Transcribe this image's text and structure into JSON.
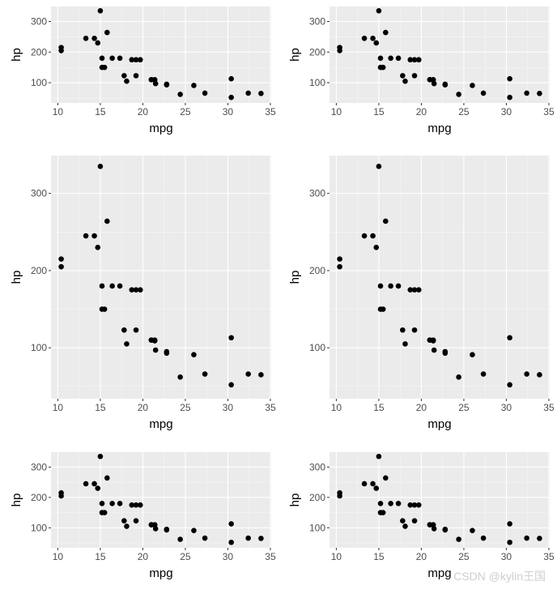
{
  "colors": {
    "panel": "#ebebeb",
    "grid_major": "#ffffff",
    "grid_minor": "#f5f5f5",
    "point": "#000000",
    "tick_text": "#4d4d4d",
    "title_text": "#000000"
  },
  "watermark": "CSDN @kylin王国",
  "chart_data": [
    {
      "type": "scatter",
      "panel": "top-left",
      "xlabel": "mpg",
      "ylabel": "hp",
      "xlim": [
        9.2,
        35.1
      ],
      "ylim": [
        34,
        349
      ],
      "xticks": [
        10,
        15,
        20,
        25,
        30,
        35
      ],
      "yticks": [
        100,
        200,
        300
      ],
      "grid": true,
      "x": [
        21.0,
        21.0,
        22.8,
        21.4,
        18.7,
        18.1,
        14.3,
        24.4,
        22.8,
        19.2,
        17.8,
        16.4,
        17.3,
        15.2,
        10.4,
        10.4,
        14.7,
        32.4,
        30.4,
        33.9,
        21.5,
        15.5,
        15.2,
        13.3,
        19.2,
        27.3,
        26.0,
        30.4,
        15.8,
        19.7,
        15.0,
        21.4
      ],
      "y": [
        110,
        110,
        93,
        110,
        175,
        105,
        245,
        62,
        95,
        123,
        123,
        180,
        180,
        180,
        205,
        215,
        230,
        66,
        52,
        65,
        97,
        150,
        150,
        245,
        175,
        66,
        91,
        113,
        264,
        175,
        335,
        109
      ]
    },
    {
      "type": "scatter",
      "panel": "top-right",
      "xlabel": "mpg",
      "ylabel": "hp",
      "xlim": [
        9.2,
        35.1
      ],
      "ylim": [
        34,
        349
      ],
      "xticks": [
        10,
        15,
        20,
        25,
        30,
        35
      ],
      "yticks": [
        100,
        200,
        300
      ],
      "grid": true,
      "x": [
        21.0,
        21.0,
        22.8,
        21.4,
        18.7,
        18.1,
        14.3,
        24.4,
        22.8,
        19.2,
        17.8,
        16.4,
        17.3,
        15.2,
        10.4,
        10.4,
        14.7,
        32.4,
        30.4,
        33.9,
        21.5,
        15.5,
        15.2,
        13.3,
        19.2,
        27.3,
        26.0,
        30.4,
        15.8,
        19.7,
        15.0,
        21.4
      ],
      "y": [
        110,
        110,
        93,
        110,
        175,
        105,
        245,
        62,
        95,
        123,
        123,
        180,
        180,
        180,
        205,
        215,
        230,
        66,
        52,
        65,
        97,
        150,
        150,
        245,
        175,
        66,
        91,
        113,
        264,
        175,
        335,
        109
      ]
    },
    {
      "type": "scatter",
      "panel": "middle-left",
      "xlabel": "mpg",
      "ylabel": "hp",
      "xlim": [
        9.2,
        35.1
      ],
      "ylim": [
        34,
        349
      ],
      "xticks": [
        10,
        15,
        20,
        25,
        30,
        35
      ],
      "yticks": [
        100,
        200,
        300
      ],
      "grid": true,
      "x": [
        21.0,
        21.0,
        22.8,
        21.4,
        18.7,
        18.1,
        14.3,
        24.4,
        22.8,
        19.2,
        17.8,
        16.4,
        17.3,
        15.2,
        10.4,
        10.4,
        14.7,
        32.4,
        30.4,
        33.9,
        21.5,
        15.5,
        15.2,
        13.3,
        19.2,
        27.3,
        26.0,
        30.4,
        15.8,
        19.7,
        15.0,
        21.4
      ],
      "y": [
        110,
        110,
        93,
        110,
        175,
        105,
        245,
        62,
        95,
        123,
        123,
        180,
        180,
        180,
        205,
        215,
        230,
        66,
        52,
        65,
        97,
        150,
        150,
        245,
        175,
        66,
        91,
        113,
        264,
        175,
        335,
        109
      ]
    },
    {
      "type": "scatter",
      "panel": "middle-right",
      "xlabel": "mpg",
      "ylabel": "hp",
      "xlim": [
        9.2,
        35.1
      ],
      "ylim": [
        34,
        349
      ],
      "xticks": [
        10,
        15,
        20,
        25,
        30,
        35
      ],
      "yticks": [
        100,
        200,
        300
      ],
      "grid": true,
      "x": [
        21.0,
        21.0,
        22.8,
        21.4,
        18.7,
        18.1,
        14.3,
        24.4,
        22.8,
        19.2,
        17.8,
        16.4,
        17.3,
        15.2,
        10.4,
        10.4,
        14.7,
        32.4,
        30.4,
        33.9,
        21.5,
        15.5,
        15.2,
        13.3,
        19.2,
        27.3,
        26.0,
        30.4,
        15.8,
        19.7,
        15.0,
        21.4
      ],
      "y": [
        110,
        110,
        93,
        110,
        175,
        105,
        245,
        62,
        95,
        123,
        123,
        180,
        180,
        180,
        205,
        215,
        230,
        66,
        52,
        65,
        97,
        150,
        150,
        245,
        175,
        66,
        91,
        113,
        264,
        175,
        335,
        109
      ]
    },
    {
      "type": "scatter",
      "panel": "bottom-left",
      "xlabel": "mpg",
      "ylabel": "hp",
      "xlim": [
        9.2,
        35.1
      ],
      "ylim": [
        34,
        349
      ],
      "xticks": [
        10,
        15,
        20,
        25,
        30,
        35
      ],
      "yticks": [
        100,
        200,
        300
      ],
      "grid": true,
      "x": [
        21.0,
        21.0,
        22.8,
        21.4,
        18.7,
        18.1,
        14.3,
        24.4,
        22.8,
        19.2,
        17.8,
        16.4,
        17.3,
        15.2,
        10.4,
        10.4,
        14.7,
        32.4,
        30.4,
        33.9,
        21.5,
        15.5,
        15.2,
        13.3,
        19.2,
        27.3,
        26.0,
        30.4,
        15.8,
        19.7,
        15.0,
        21.4
      ],
      "y": [
        110,
        110,
        93,
        110,
        175,
        105,
        245,
        62,
        95,
        123,
        123,
        180,
        180,
        180,
        205,
        215,
        230,
        66,
        52,
        65,
        97,
        150,
        150,
        245,
        175,
        66,
        91,
        113,
        264,
        175,
        335,
        109
      ]
    },
    {
      "type": "scatter",
      "panel": "bottom-right",
      "xlabel": "mpg",
      "ylabel": "hp",
      "xlim": [
        9.2,
        35.1
      ],
      "ylim": [
        34,
        349
      ],
      "xticks": [
        10,
        15,
        20,
        25,
        30,
        35
      ],
      "yticks": [
        100,
        200,
        300
      ],
      "grid": true,
      "x": [
        21.0,
        21.0,
        22.8,
        21.4,
        18.7,
        18.1,
        14.3,
        24.4,
        22.8,
        19.2,
        17.8,
        16.4,
        17.3,
        15.2,
        10.4,
        10.4,
        14.7,
        32.4,
        30.4,
        33.9,
        21.5,
        15.5,
        15.2,
        13.3,
        19.2,
        27.3,
        26.0,
        30.4,
        15.8,
        19.7,
        15.0,
        21.4
      ],
      "y": [
        110,
        110,
        93,
        110,
        175,
        105,
        245,
        62,
        95,
        123,
        123,
        180,
        180,
        180,
        205,
        215,
        230,
        66,
        52,
        65,
        97,
        150,
        150,
        245,
        175,
        66,
        91,
        113,
        264,
        175,
        335,
        109
      ]
    }
  ]
}
